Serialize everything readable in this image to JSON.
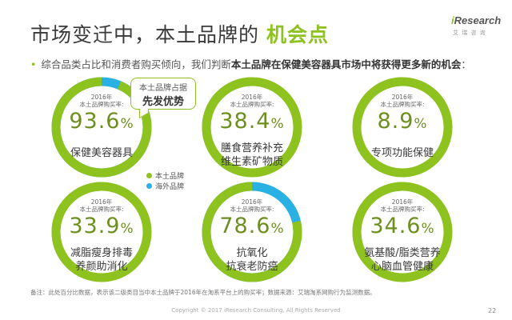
{
  "title": {
    "main": "市场变迁中，本土品牌的",
    "highlight": "机会点"
  },
  "logo": {
    "word_i": "i",
    "word_rest": "Research",
    "sub": "艾 瑞 咨 询"
  },
  "bullet": {
    "pre": "综合品类占比和消费者购买倾向，我们判断",
    "bold": "本土品牌在保健美容器具市场中将获得更多新的机会",
    "post": "："
  },
  "colors": {
    "local": "#8dc21f",
    "overseas": "#29b1e3",
    "pct_text": "#6d8f1f"
  },
  "legend": {
    "local": "本土品牌",
    "overseas": "海外品牌"
  },
  "callout": {
    "line1": "本土品牌占据",
    "line2": "先发优势"
  },
  "rings": [
    {
      "year": "2016年",
      "desc": "本土品牌购买率:",
      "value": 93.6,
      "num": "93.6",
      "sym": "%",
      "line1": "保健美容器具",
      "line2": "",
      "ring_color": "#8dc21f"
    },
    {
      "year": "2016年",
      "desc": "本土品牌购买率:",
      "value": 38.4,
      "num": "38.4",
      "sym": "%",
      "line1": "膳食营养补充",
      "line2": "维生素矿物质",
      "ring_color": "#29b1e3"
    },
    {
      "year": "2016年",
      "desc": "本土品牌购买率:",
      "value": 8.9,
      "num": "8.9",
      "sym": "%",
      "line1": "专项功能保健",
      "line2": "",
      "ring_color": "#29b1e3"
    },
    {
      "year": "2016年",
      "desc": "本土品牌购买率:",
      "value": 33.9,
      "num": "33.9",
      "sym": "%",
      "line1": "减脂瘦身排毒",
      "line2": "养颜助消化",
      "ring_color": "#29b1e3"
    },
    {
      "year": "2016年",
      "desc": "本土品牌购买率:",
      "value": 78.6,
      "num": "78.6",
      "sym": "%",
      "line1": "抗氧化",
      "line2": "抗衰老防癌",
      "ring_color": "#8dc21f"
    },
    {
      "year": "2016年",
      "desc": "本土品牌购买率:",
      "value": 34.6,
      "num": "34.6",
      "sym": "%",
      "line1": "氨基酸/脂类营养",
      "line2": "心脑血管健康",
      "ring_color": "#29b1e3"
    }
  ],
  "note": "备注：此处百分比数据，表示该二级类目当中本土品牌于2016年在淘系平台上的购买率；数据来源：艾瑞淘系网购行为监测数据。",
  "copyright": "Copyright © 2017 iResearch Consulting, All Rights Reserved",
  "page": "22"
}
